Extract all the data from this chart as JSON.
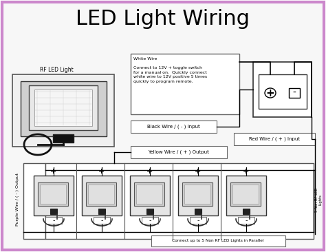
{
  "title": "LED Light Wiring",
  "title_fontsize": 22,
  "bg_color": "#ffffff",
  "border_color": "#cc88cc",
  "white_box_text": "White Wire\n\nConnect to 12V + toggle switch\nfor a manual on.  Quickly connect\nwhite wire to 12V positive 5 times\nquickly to program remote.",
  "black_wire_label": "Black Wire / ( - ) Input",
  "red_wire_label": "Red Wire / ( + ) Input",
  "yellow_wire_label": "Yellow Wire / ( + ) Output",
  "purple_wire_label": "Purple Wire / ( - ) Output",
  "rf_led_label": "RF LED Light",
  "bottom_label": "Connect up to 5 Non RF LED Lights in Parallel",
  "right_label": "5 Non RF LED\nLights",
  "plus_sign": "+",
  "minus_sign": "-"
}
